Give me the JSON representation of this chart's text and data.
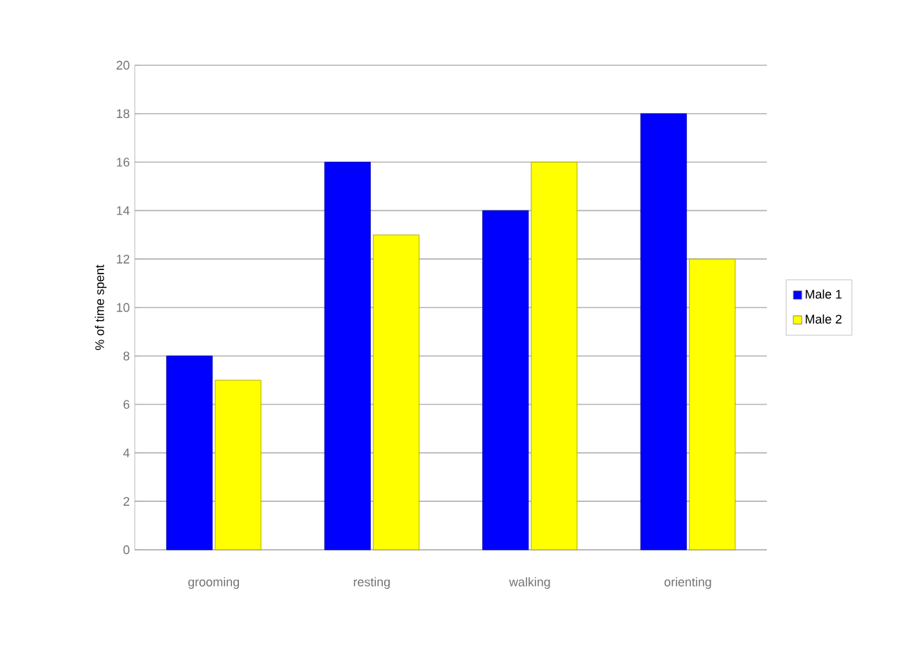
{
  "chart_data": {
    "type": "bar",
    "ylabel": "% of time spent",
    "categories": [
      "grooming",
      "resting",
      "walking",
      "orienting"
    ],
    "series": [
      {
        "name": "Male 1",
        "color": "#0000ff",
        "values": [
          8,
          16,
          14,
          18
        ]
      },
      {
        "name": "Male 2",
        "color": "#ffff00",
        "values": [
          7,
          13,
          16,
          12
        ]
      }
    ],
    "ylim": [
      0,
      20
    ],
    "yticks": [
      0,
      2,
      4,
      6,
      8,
      10,
      12,
      14,
      16,
      18,
      20
    ],
    "grid": "y",
    "legend": "right"
  }
}
